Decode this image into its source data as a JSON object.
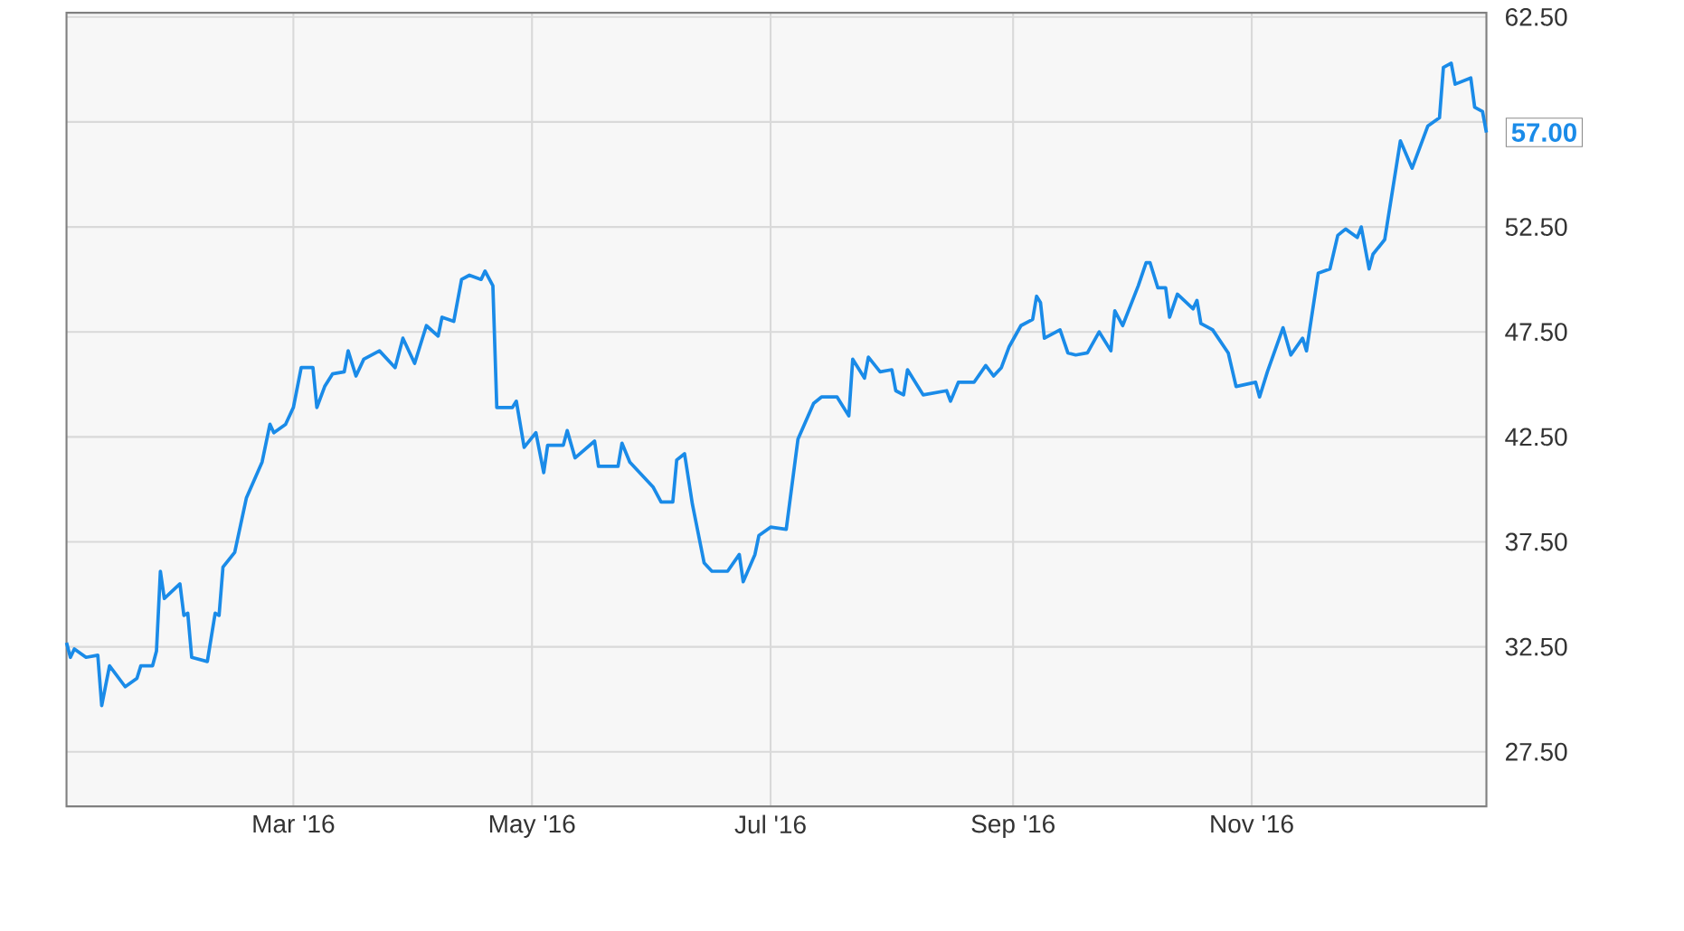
{
  "chart_data": {
    "type": "line",
    "x": [
      "2016-01-03",
      "2016-01-04",
      "2016-01-05",
      "2016-01-08",
      "2016-01-11",
      "2016-01-12",
      "2016-01-14",
      "2016-01-18",
      "2016-01-21",
      "2016-01-22",
      "2016-01-25",
      "2016-01-26",
      "2016-01-27",
      "2016-01-28",
      "2016-02-01",
      "2016-02-02",
      "2016-02-03",
      "2016-02-04",
      "2016-02-08",
      "2016-02-10",
      "2016-02-11",
      "2016-02-12",
      "2016-02-15",
      "2016-02-18",
      "2016-02-22",
      "2016-02-24",
      "2016-02-25",
      "2016-02-28",
      "2016-03-01",
      "2016-03-03",
      "2016-03-06",
      "2016-03-07",
      "2016-03-09",
      "2016-03-11",
      "2016-03-14",
      "2016-03-15",
      "2016-03-17",
      "2016-03-19",
      "2016-03-23",
      "2016-03-27",
      "2016-03-29",
      "2016-04-01",
      "2016-04-04",
      "2016-04-07",
      "2016-04-08",
      "2016-04-11",
      "2016-04-13",
      "2016-04-15",
      "2016-04-18",
      "2016-04-19",
      "2016-04-21",
      "2016-04-22",
      "2016-04-26",
      "2016-04-27",
      "2016-04-29",
      "2016-05-02",
      "2016-05-04",
      "2016-05-05",
      "2016-05-09",
      "2016-05-10",
      "2016-05-12",
      "2016-05-17",
      "2016-05-18",
      "2016-05-23",
      "2016-05-24",
      "2016-05-26",
      "2016-06-01",
      "2016-06-03",
      "2016-06-06",
      "2016-06-07",
      "2016-06-09",
      "2016-06-11",
      "2016-06-14",
      "2016-06-16",
      "2016-06-20",
      "2016-06-23",
      "2016-06-24",
      "2016-06-27",
      "2016-06-28",
      "2016-07-01",
      "2016-07-05",
      "2016-07-08",
      "2016-07-12",
      "2016-07-14",
      "2016-07-18",
      "2016-07-21",
      "2016-07-22",
      "2016-07-25",
      "2016-07-26",
      "2016-07-29",
      "2016-08-01",
      "2016-08-02",
      "2016-08-04",
      "2016-08-05",
      "2016-08-09",
      "2016-08-15",
      "2016-08-16",
      "2016-08-18",
      "2016-08-22",
      "2016-08-25",
      "2016-08-27",
      "2016-08-29",
      "2016-08-31",
      "2016-09-03",
      "2016-09-06",
      "2016-09-07",
      "2016-09-08",
      "2016-09-09",
      "2016-09-13",
      "2016-09-15",
      "2016-09-17",
      "2016-09-20",
      "2016-09-23",
      "2016-09-26",
      "2016-09-27",
      "2016-09-29",
      "2016-10-03",
      "2016-10-05",
      "2016-10-06",
      "2016-10-08",
      "2016-10-10",
      "2016-10-11",
      "2016-10-13",
      "2016-10-17",
      "2016-10-18",
      "2016-10-19",
      "2016-10-22",
      "2016-10-26",
      "2016-10-28",
      "2016-11-02",
      "2016-11-03",
      "2016-11-05",
      "2016-11-09",
      "2016-11-11",
      "2016-11-14",
      "2016-11-15",
      "2016-11-18",
      "2016-11-21",
      "2016-11-23",
      "2016-11-25",
      "2016-11-28",
      "2016-11-29",
      "2016-12-01",
      "2016-12-02",
      "2016-12-05",
      "2016-12-09",
      "2016-12-12",
      "2016-12-16",
      "2016-12-19",
      "2016-12-20",
      "2016-12-22",
      "2016-12-23",
      "2016-12-27",
      "2016-12-28",
      "2016-12-30",
      "2016-12-31"
    ],
    "series": [
      {
        "color": "#1a8be8",
        "values": [
          32.7,
          32.0,
          32.4,
          32.0,
          32.1,
          29.7,
          31.6,
          30.6,
          31.0,
          31.6,
          31.6,
          32.3,
          36.1,
          34.8,
          35.5,
          34.0,
          34.1,
          32.0,
          31.8,
          34.1,
          34.0,
          36.3,
          37.0,
          39.6,
          41.3,
          43.1,
          42.7,
          43.1,
          43.9,
          45.8,
          45.8,
          43.9,
          44.9,
          45.5,
          45.6,
          46.6,
          45.4,
          46.2,
          46.6,
          45.8,
          47.2,
          46.0,
          47.8,
          47.3,
          48.2,
          48.0,
          50.0,
          50.2,
          50.0,
          50.4,
          49.7,
          43.9,
          43.9,
          44.2,
          42.0,
          42.7,
          40.8,
          42.1,
          42.1,
          42.8,
          41.5,
          42.3,
          41.1,
          41.1,
          42.2,
          41.3,
          40.1,
          39.4,
          39.4,
          41.4,
          41.7,
          39.3,
          36.5,
          36.1,
          36.1,
          36.9,
          35.6,
          36.9,
          37.8,
          38.2,
          38.1,
          42.4,
          44.1,
          44.4,
          44.4,
          43.5,
          46.2,
          45.3,
          46.3,
          45.6,
          45.7,
          44.7,
          44.5,
          45.7,
          44.5,
          44.7,
          44.2,
          45.1,
          45.1,
          45.9,
          45.4,
          45.8,
          46.8,
          47.8,
          48.1,
          49.2,
          48.9,
          47.2,
          47.6,
          46.5,
          46.4,
          46.5,
          47.5,
          46.6,
          48.5,
          47.8,
          49.7,
          50.8,
          50.8,
          49.6,
          49.6,
          48.2,
          49.3,
          48.6,
          49.0,
          47.9,
          47.6,
          46.5,
          44.9,
          45.1,
          44.4,
          45.6,
          47.7,
          46.4,
          47.2,
          46.6,
          50.3,
          50.5,
          52.1,
          52.4,
          52.0,
          52.5,
          50.5,
          51.2,
          51.9,
          56.6,
          55.3,
          57.3,
          57.7,
          60.1,
          60.3,
          59.3,
          59.6,
          58.2,
          58.0,
          57.0
        ]
      }
    ],
    "xlim": [
      "2016-01-03",
      "2016-12-31"
    ],
    "xticks": [
      {
        "value": "2016-03-01",
        "label": "Mar '16"
      },
      {
        "value": "2016-05-01",
        "label": "May '16"
      },
      {
        "value": "2016-07-01",
        "label": "Jul '16"
      },
      {
        "value": "2016-09-01",
        "label": "Sep '16"
      },
      {
        "value": "2016-11-01",
        "label": "Nov '16"
      }
    ],
    "ylim": [
      24.9,
      62.7
    ],
    "yticks": [
      {
        "value": 27.5,
        "label": "27.50"
      },
      {
        "value": 32.5,
        "label": "32.50"
      },
      {
        "value": 37.5,
        "label": "37.50"
      },
      {
        "value": 42.5,
        "label": "42.50"
      },
      {
        "value": 47.5,
        "label": "47.50"
      },
      {
        "value": 52.5,
        "label": "52.50"
      },
      {
        "value": 57.5,
        "label": null
      },
      {
        "value": 62.5,
        "label": "62.50"
      }
    ],
    "grid": true,
    "annotations": [
      {
        "text": "57.00",
        "x": "2016-12-31",
        "y": 57.0
      }
    ]
  }
}
